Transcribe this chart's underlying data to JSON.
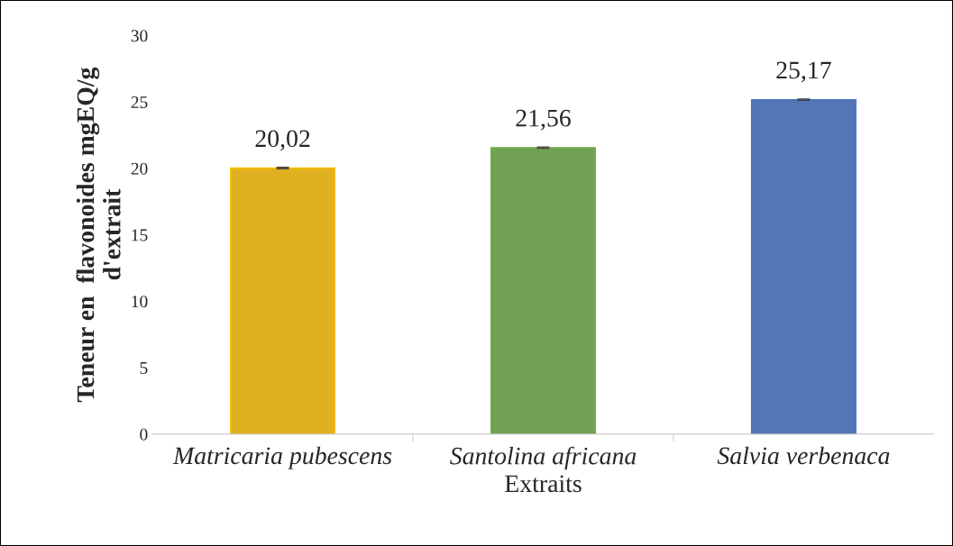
{
  "chart_data": {
    "type": "bar",
    "xlabel": "Extraits",
    "ylabel": "Teneur en  flavonoides mgEQ/g\nd'extrait",
    "categories": [
      "Matricaria pubescens",
      "Santolina africana",
      "Salvia verbenaca"
    ],
    "values": [
      20.02,
      21.56,
      25.17
    ],
    "colors": [
      "#ffc000",
      "#70ad47",
      "#4472c4"
    ],
    "errors": [
      0.05,
      0.05,
      0.05
    ],
    "value_labels": [
      "20,02",
      "21,56",
      "25,17"
    ],
    "ylim": [
      0,
      30
    ],
    "yticks": [
      0,
      5,
      10,
      15,
      20,
      25,
      30
    ],
    "grid": false,
    "legend": false
  }
}
